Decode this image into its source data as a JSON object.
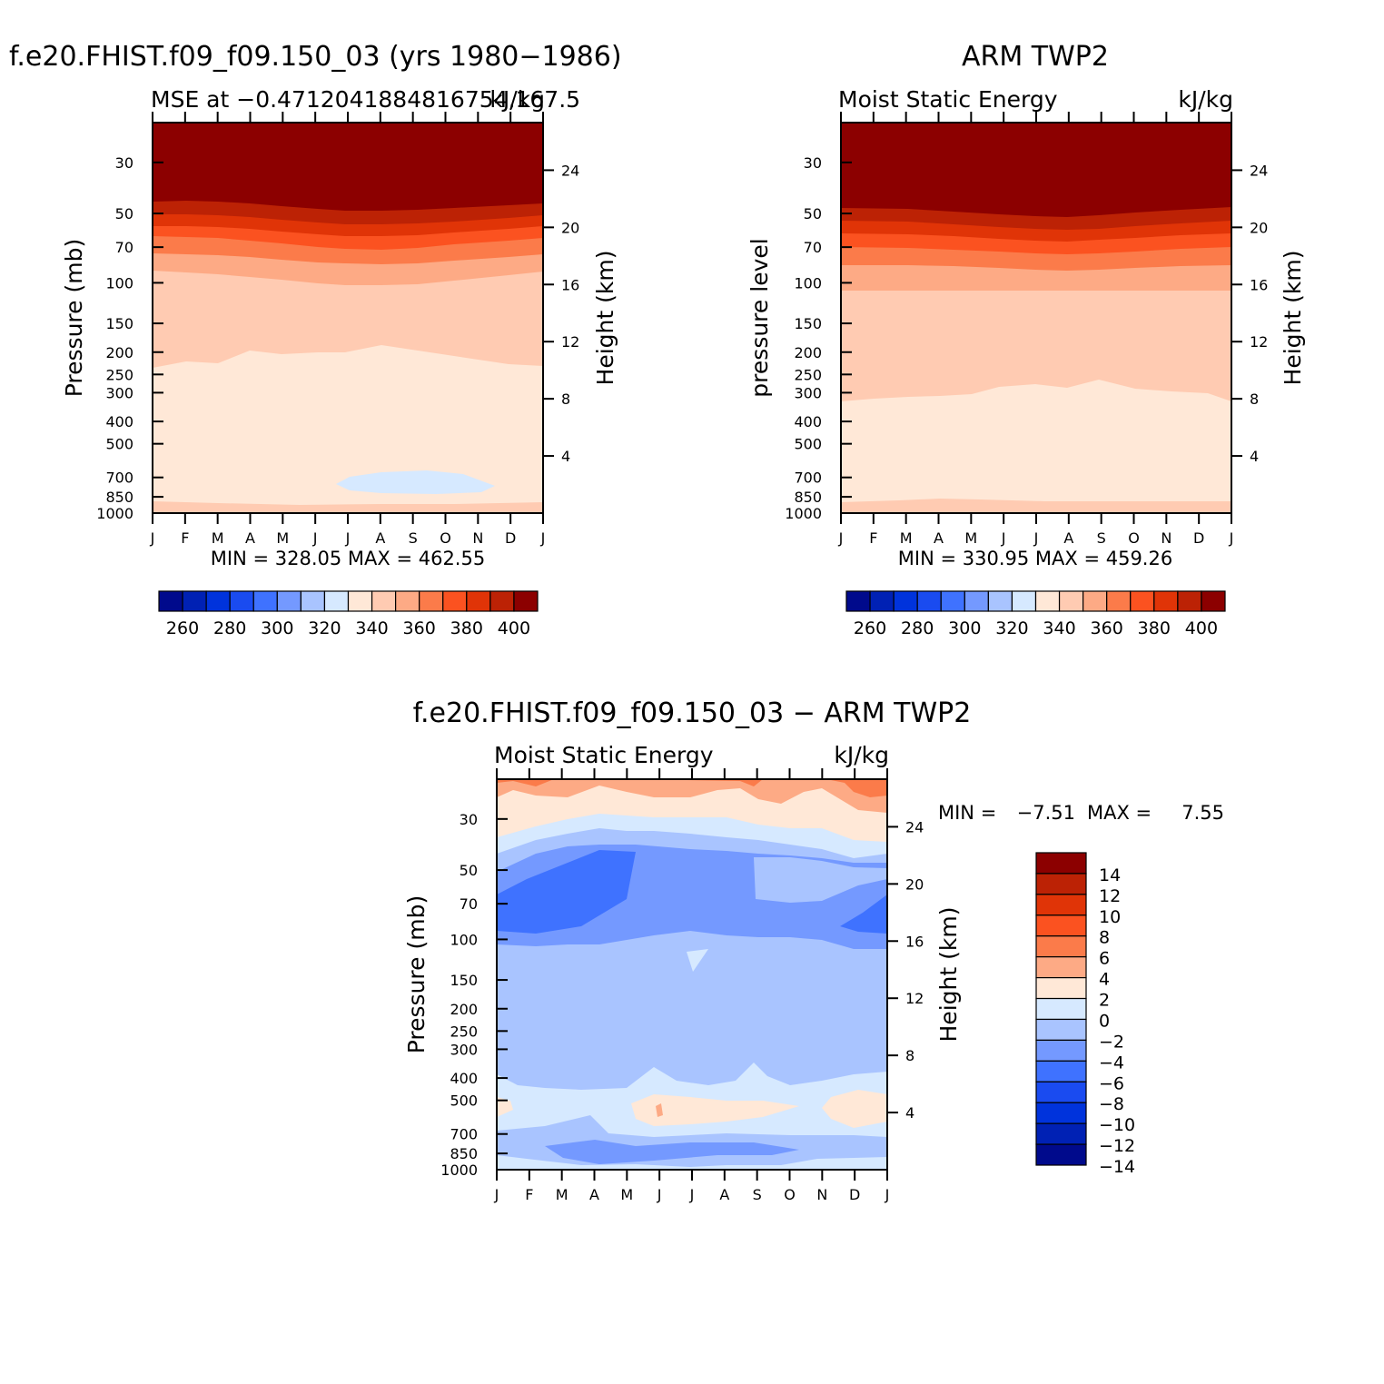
{
  "panels": [
    {
      "title": "f.e20.FHIST.f09_f09.150_03 (yrs 1980−1986)",
      "subtitle_left": "MSE at −0.4712041884816754,167.5",
      "subtitle_right": "kJ/kg",
      "ylabel": "Pressure (mb)",
      "ylabel_right": "Height (km)",
      "minmax": "MIN = 328.05 MAX = 462.55"
    },
    {
      "title": "ARM TWP2",
      "subtitle_left": "Moist Static Energy",
      "subtitle_right": "kJ/kg",
      "ylabel": "pressure level",
      "ylabel_right": "Height (km)",
      "minmax": "MIN = 330.95 MAX = 459.26"
    },
    {
      "title": "f.e20.FHIST.f09_f09.150_03 − ARM TWP2",
      "subtitle_left": "Moist Static Energy",
      "subtitle_right": "kJ/kg",
      "ylabel": "Pressure (mb)",
      "ylabel_right": "Height (km)",
      "minmax_min": "MIN =",
      "minmax_minval": "−7.51",
      "minmax_max": "MAX =",
      "minmax_maxval": "7.55"
    }
  ],
  "chart_data": {
    "type": "heatmap",
    "x_ticks": [
      "J",
      "F",
      "M",
      "A",
      "M",
      "J",
      "J",
      "A",
      "S",
      "O",
      "N",
      "D",
      "J"
    ],
    "pressure_ticks": [
      30,
      50,
      70,
      100,
      150,
      200,
      250,
      300,
      400,
      500,
      700,
      850,
      1000
    ],
    "height_ticks": [
      24,
      20,
      16,
      12,
      8,
      4
    ],
    "y_scale": "log pressure",
    "colorbar_abs": {
      "labels": [
        "260",
        "280",
        "300",
        "320",
        "340",
        "360",
        "380",
        "400"
      ],
      "colors": [
        "#000a8c",
        "#0021b4",
        "#0033dc",
        "#1a4bf0",
        "#3f72ff",
        "#7499ff",
        "#a9c4ff",
        "#d6e9ff",
        "#ffe8d7",
        "#ffcbb2",
        "#fdaa85",
        "#fb7b4a",
        "#fb5220",
        "#e03407",
        "#bc2205",
        "#8c0000"
      ]
    },
    "colorbar_diff": {
      "labels": [
        "14",
        "12",
        "10",
        "8",
        "6",
        "4",
        "2",
        "0",
        "−2",
        "−4",
        "−6",
        "−8",
        "−10",
        "−12",
        "−14"
      ],
      "colors": [
        "#8c0000",
        "#bc2205",
        "#e03407",
        "#fb5220",
        "#fb7b4a",
        "#fdaa85",
        "#ffe8d7",
        "#d6e9ff",
        "#a9c4ff",
        "#7499ff",
        "#3f72ff",
        "#1a4bf0",
        "#0033dc",
        "#0021b4",
        "#000a8c"
      ]
    }
  }
}
